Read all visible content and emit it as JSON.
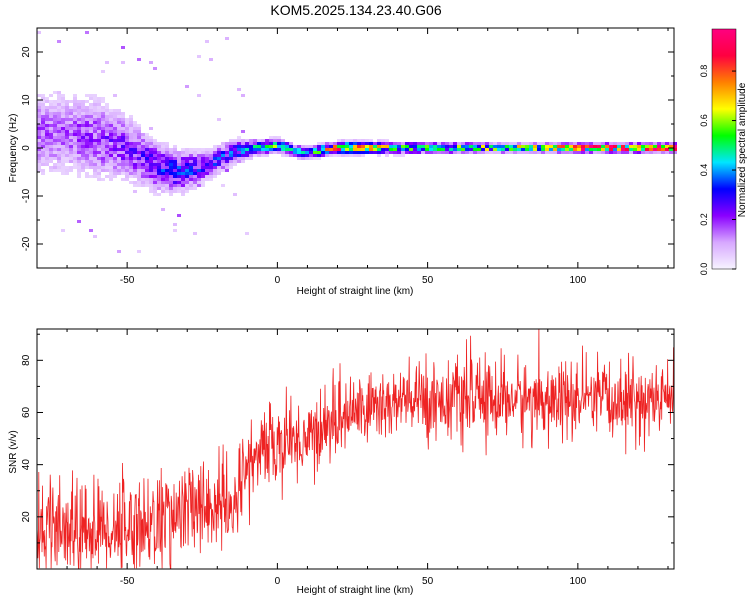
{
  "figure": {
    "title": "KOM5.2025.134.23.40.G06"
  },
  "colors": {
    "snr_line": "#ee2222",
    "frame": "#000000",
    "background": "#ffffff"
  },
  "chart_data": [
    {
      "type": "heatmap",
      "title": "KOM5.2025.134.23.40.G06",
      "xlabel": "Height of straight line (km)",
      "ylabel": "Frequency (Hz)",
      "xlim": [
        -80,
        132
      ],
      "ylim": [
        -25,
        25
      ],
      "x_ticks": [
        -50,
        0,
        50,
        100
      ],
      "x_tick_labels": [
        "-50",
        "0",
        "50",
        "100"
      ],
      "y_ticks": [
        -20,
        -10,
        0,
        10,
        20
      ],
      "y_tick_labels": [
        "-20",
        "-10",
        "0",
        "10",
        "20"
      ],
      "colorbar": {
        "label": "Normalized spectral amplitude",
        "range": [
          0,
          0.97
        ],
        "ticks": [
          0.0,
          0.2,
          0.4,
          0.6,
          0.8
        ],
        "tick_labels": [
          "0.0",
          "0.2",
          "0.4",
          "0.6",
          "0.8"
        ],
        "colormap": [
          "#f7f4ff",
          "#d7a8ff",
          "#8a00ff",
          "#0000ff",
          "#00e6ff",
          "#00ff00",
          "#ffff00",
          "#ff8000",
          "#ff0040",
          "#ff0080"
        ]
      },
      "ridge": [
        {
          "x": -70,
          "f": 3,
          "amp": 0.15,
          "spread": 5
        },
        {
          "x": -60,
          "f": 2,
          "amp": 0.18,
          "spread": 5
        },
        {
          "x": -50,
          "f": 0,
          "amp": 0.2,
          "spread": 4
        },
        {
          "x": -40,
          "f": -4,
          "amp": 0.25,
          "spread": 3
        },
        {
          "x": -32,
          "f": -5,
          "amp": 0.3,
          "spread": 2.5
        },
        {
          "x": -25,
          "f": -4,
          "amp": 0.25,
          "spread": 2
        },
        {
          "x": -15,
          "f": -1,
          "amp": 0.3,
          "spread": 1.5
        },
        {
          "x": -8,
          "f": 0,
          "amp": 0.35,
          "spread": 1
        },
        {
          "x": 0,
          "f": 0.5,
          "amp": 0.5,
          "spread": 0.8
        },
        {
          "x": 5,
          "f": -0.5,
          "amp": 0.4,
          "spread": 0.8
        },
        {
          "x": 10,
          "f": -1,
          "amp": 0.3,
          "spread": 0.8
        },
        {
          "x": 20,
          "f": 0,
          "amp": 0.75,
          "spread": 0.7
        },
        {
          "x": 30,
          "f": 0,
          "amp": 0.7,
          "spread": 0.7
        },
        {
          "x": 40,
          "f": 0,
          "amp": 0.45,
          "spread": 0.7
        },
        {
          "x": 60,
          "f": 0,
          "amp": 0.5,
          "spread": 0.6
        },
        {
          "x": 80,
          "f": 0,
          "amp": 0.6,
          "spread": 0.5
        },
        {
          "x": 100,
          "f": 0,
          "amp": 0.8,
          "spread": 0.5
        },
        {
          "x": 120,
          "f": 0,
          "amp": 0.9,
          "spread": 0.5
        },
        {
          "x": 132,
          "f": 0,
          "amp": 0.95,
          "spread": 0.5
        }
      ]
    },
    {
      "type": "line",
      "xlabel": "Height of straight line (km)",
      "ylabel": "SNR (v/v)",
      "xlim": [
        -80,
        132
      ],
      "ylim": [
        0,
        92
      ],
      "x_ticks": [
        -50,
        0,
        50,
        100
      ],
      "x_tick_labels": [
        "-50",
        "0",
        "50",
        "100"
      ],
      "y_ticks": [
        20,
        40,
        60,
        80
      ],
      "y_tick_labels": [
        "20",
        "40",
        "60",
        "80"
      ],
      "series": [
        {
          "color": "#ee2222",
          "trend_x": [
            -80,
            -60,
            -40,
            -30,
            -20,
            -14,
            -12,
            -5,
            0,
            10,
            20,
            30,
            50,
            80,
            100,
            132
          ],
          "trend_y": [
            13,
            15,
            18,
            22,
            25,
            20,
            38,
            45,
            48,
            50,
            58,
            62,
            65,
            65,
            64,
            65
          ],
          "noise_sd": 9
        }
      ]
    }
  ]
}
